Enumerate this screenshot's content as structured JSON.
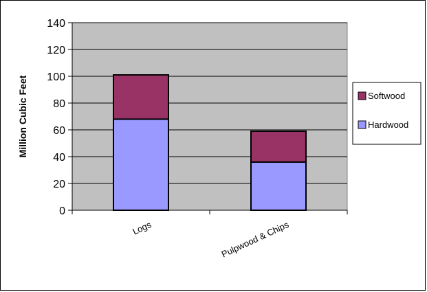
{
  "chart_data": {
    "type": "bar",
    "stacked": true,
    "categories": [
      "Logs",
      "Pulpwood & Chips"
    ],
    "series": [
      {
        "name": "Hardwood",
        "values": [
          68,
          36
        ],
        "color": "#9999ff"
      },
      {
        "name": "Softwood",
        "values": [
          33,
          23
        ],
        "color": "#993366"
      }
    ],
    "title": "",
    "xlabel": "",
    "ylabel": "Million Cubic Feet",
    "ylim": [
      0,
      140
    ],
    "yticks": [
      0,
      20,
      40,
      60,
      80,
      100,
      120,
      140
    ],
    "grid": true,
    "plot_background": "#c0c0c0",
    "legend_position": "right",
    "legend_order": [
      "Softwood",
      "Hardwood"
    ]
  }
}
